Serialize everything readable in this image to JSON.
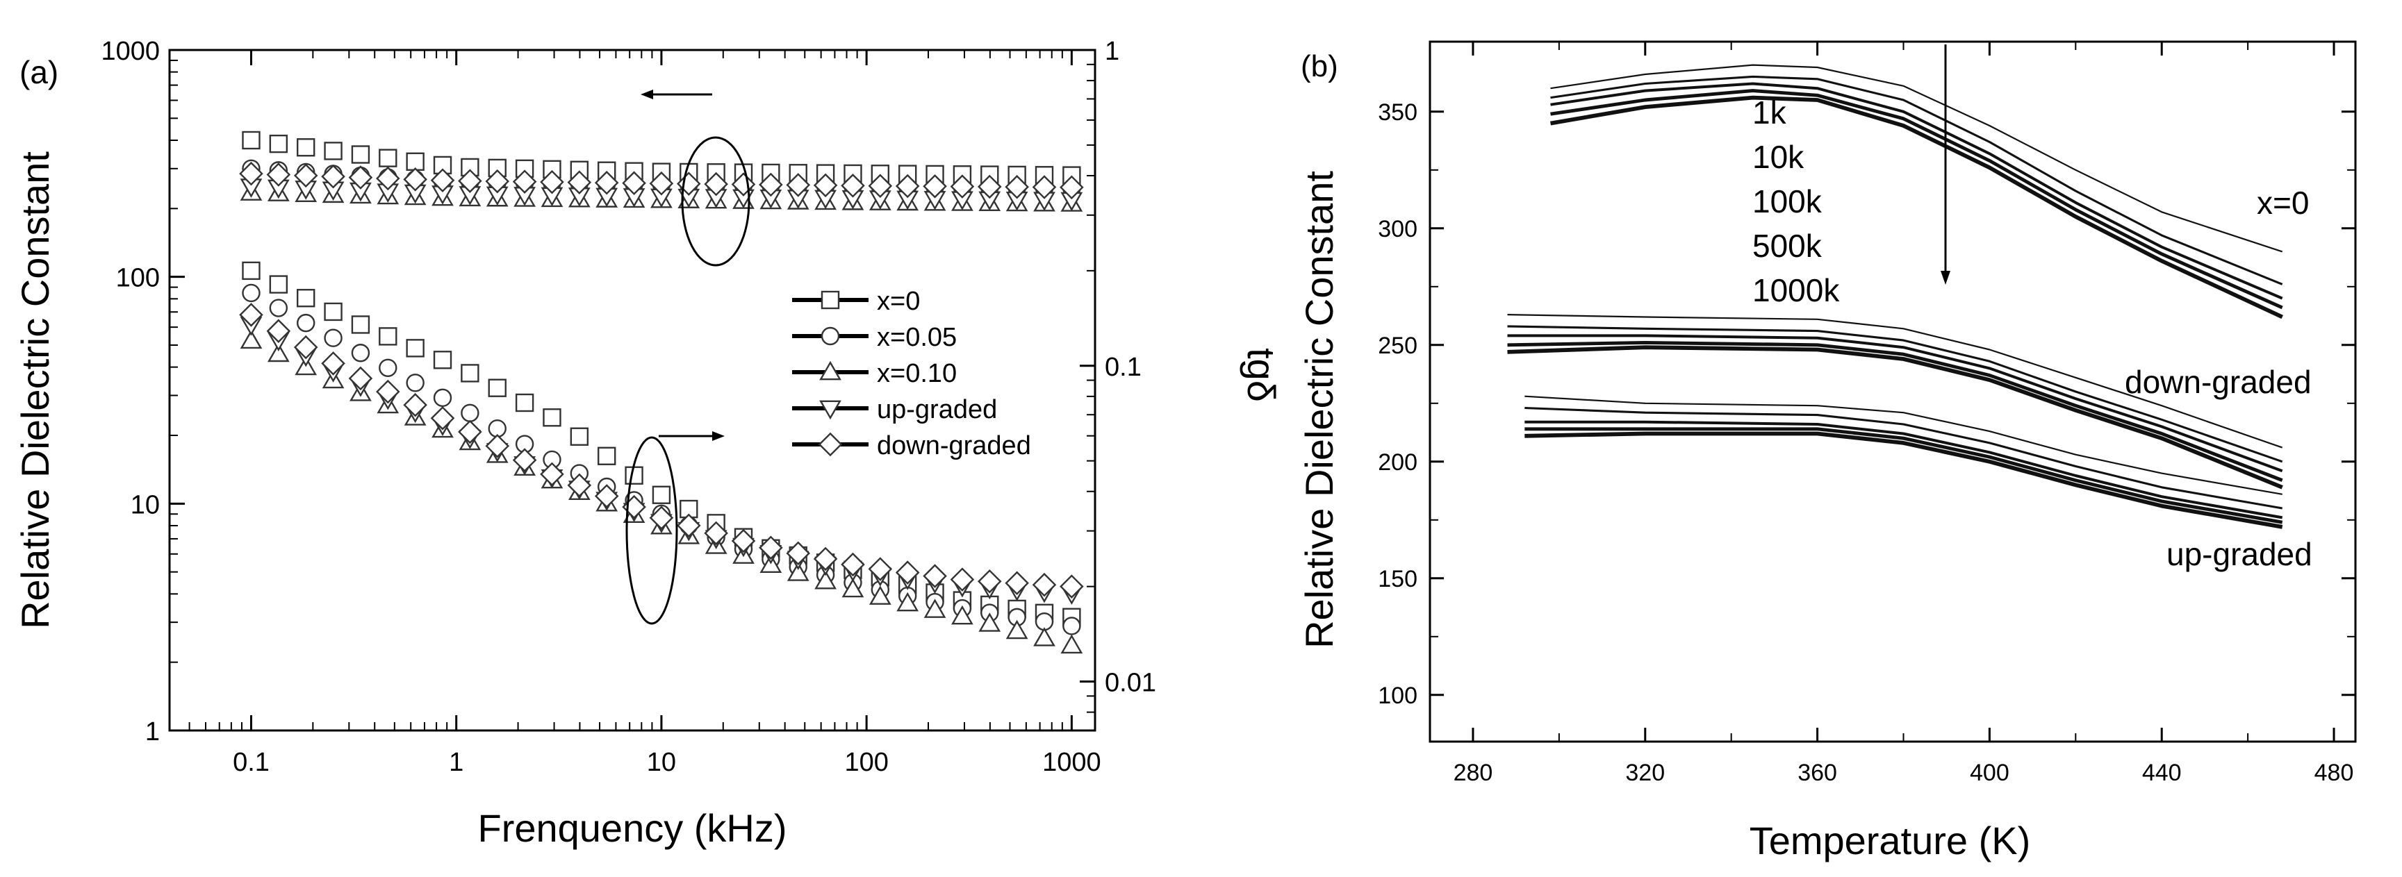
{
  "chart_data": [
    {
      "type": "scatter",
      "panel_label": "(a)",
      "xscale": "log",
      "xlabel": "Frenquency (kHz)",
      "ylabel": "Relative Dielectric Constant",
      "y2label": "tgδ",
      "xlim": [
        0.04,
        1300
      ],
      "ylim": [
        1,
        1000
      ],
      "y2lim": [
        0.007,
        1
      ],
      "xticks": [
        "0.1",
        "1",
        "10",
        "100",
        "1000"
      ],
      "xtick_values": [
        0.1,
        1,
        10,
        100,
        1000
      ],
      "yticks": [
        "1",
        "10",
        "100",
        "1000"
      ],
      "ytick_values": [
        1,
        10,
        100,
        1000
      ],
      "y2ticks": [
        "0.01",
        "0.1",
        "1"
      ],
      "y2tick_values": [
        0.01,
        0.1,
        1
      ],
      "legend": [
        "x=0",
        "x=0.05",
        "x=0.10",
        "up-graded",
        "down-graded"
      ],
      "series": [
        {
          "name": "x=0",
          "marker": "square",
          "axis": "y",
          "values": [
            [
              0.1,
              400
            ],
            [
              1,
              305
            ],
            [
              10,
              290
            ],
            [
              100,
              285
            ],
            [
              1000,
              280
            ]
          ]
        },
        {
          "name": "x=0.05",
          "marker": "circle",
          "axis": "y",
          "values": [
            [
              0.1,
              300
            ],
            [
              1,
              262
            ],
            [
              10,
              255
            ],
            [
              100,
              250
            ],
            [
              1000,
              245
            ]
          ]
        },
        {
          "name": "x=0.10",
          "marker": "triangle-up",
          "axis": "y",
          "values": [
            [
              0.1,
              235
            ],
            [
              1,
              222
            ],
            [
              10,
              218
            ],
            [
              100,
              213
            ],
            [
              1000,
              210
            ]
          ]
        },
        {
          "name": "up-graded",
          "marker": "triangle-down",
          "axis": "y",
          "values": [
            [
              0.1,
              250
            ],
            [
              1,
              232
            ],
            [
              10,
              226
            ],
            [
              100,
              222
            ],
            [
              1000,
              218
            ]
          ]
        },
        {
          "name": "down-graded",
          "marker": "diamond",
          "axis": "y",
          "values": [
            [
              0.1,
              285
            ],
            [
              1,
              265
            ],
            [
              10,
              258
            ],
            [
              100,
              252
            ],
            [
              1000,
              248
            ]
          ]
        },
        {
          "name": "x=0",
          "marker": "square",
          "axis": "y2",
          "values": [
            [
              0.1,
              0.2
            ],
            [
              0.3,
              0.14
            ],
            [
              1,
              0.1
            ],
            [
              3,
              0.068
            ],
            [
              10,
              0.039
            ],
            [
              30,
              0.027
            ],
            [
              100,
              0.022
            ],
            [
              300,
              0.018
            ],
            [
              1000,
              0.016
            ]
          ]
        },
        {
          "name": "x=0.05",
          "marker": "circle",
          "axis": "y2",
          "values": [
            [
              0.1,
              0.17
            ],
            [
              0.3,
              0.115
            ],
            [
              1,
              0.075
            ],
            [
              3,
              0.05
            ],
            [
              10,
              0.034
            ],
            [
              30,
              0.025
            ],
            [
              100,
              0.02
            ],
            [
              300,
              0.017
            ],
            [
              1000,
              0.015
            ]
          ]
        },
        {
          "name": "x=0.10",
          "marker": "triangle-up",
          "axis": "y2",
          "values": [
            [
              0.1,
              0.12
            ],
            [
              0.3,
              0.085
            ],
            [
              1,
              0.06
            ],
            [
              3,
              0.043
            ],
            [
              10,
              0.031
            ],
            [
              30,
              0.024
            ],
            [
              100,
              0.019
            ],
            [
              300,
              0.016
            ],
            [
              1000,
              0.013
            ]
          ]
        },
        {
          "name": "up-graded",
          "marker": "triangle-down",
          "axis": "y2",
          "values": [
            [
              0.1,
              0.135
            ],
            [
              0.3,
              0.09
            ],
            [
              1,
              0.062
            ],
            [
              3,
              0.044
            ],
            [
              10,
              0.032
            ],
            [
              30,
              0.026
            ],
            [
              100,
              0.022
            ],
            [
              300,
              0.02
            ],
            [
              1000,
              0.019
            ]
          ]
        },
        {
          "name": "down-graded",
          "marker": "diamond",
          "axis": "y2",
          "values": [
            [
              0.1,
              0.145
            ],
            [
              0.3,
              0.095
            ],
            [
              1,
              0.065
            ],
            [
              3,
              0.045
            ],
            [
              10,
              0.033
            ],
            [
              30,
              0.027
            ],
            [
              100,
              0.023
            ],
            [
              300,
              0.021
            ],
            [
              1000,
              0.02
            ]
          ]
        }
      ]
    },
    {
      "type": "line",
      "panel_label": "(b)",
      "xlabel": "Temperature (K)",
      "ylabel": "Relative Dielectric Constant",
      "xlim": [
        270,
        485
      ],
      "ylim": [
        80,
        380
      ],
      "xticks": [
        "280",
        "320",
        "360",
        "400",
        "440",
        "480"
      ],
      "xtick_values": [
        280,
        320,
        360,
        400,
        440,
        480
      ],
      "yticks": [
        "100",
        "150",
        "200",
        "250",
        "300",
        "350"
      ],
      "ytick_values": [
        100,
        150,
        200,
        250,
        300,
        350
      ],
      "frequency_labels": [
        "1k",
        "10k",
        "100k",
        "500k",
        "1000k"
      ],
      "group_labels": {
        "x0": "x=0",
        "down": "down-graded",
        "up": "up-graded"
      },
      "series": [
        {
          "name": "x=0 1k",
          "group": "x0",
          "x": [
            298,
            320,
            345,
            360,
            380,
            400,
            420,
            440,
            468
          ],
          "values": [
            360,
            366,
            370,
            369,
            361,
            344,
            325,
            307,
            290
          ]
        },
        {
          "name": "x=0 10k",
          "group": "x0",
          "x": [
            298,
            320,
            345,
            360,
            380,
            400,
            420,
            440,
            468
          ],
          "values": [
            356,
            362,
            365,
            364,
            355,
            337,
            316,
            297,
            276
          ]
        },
        {
          "name": "x=0 100k",
          "group": "x0",
          "x": [
            298,
            320,
            345,
            360,
            380,
            400,
            420,
            440,
            468
          ],
          "values": [
            353,
            359,
            362,
            360,
            350,
            332,
            311,
            292,
            270
          ]
        },
        {
          "name": "x=0 500k",
          "group": "x0",
          "x": [
            298,
            320,
            345,
            360,
            380,
            400,
            420,
            440,
            468
          ],
          "values": [
            349,
            355,
            359,
            357,
            347,
            329,
            308,
            289,
            266
          ]
        },
        {
          "name": "x=0 1000k",
          "group": "x0",
          "x": [
            298,
            320,
            345,
            360,
            380,
            400,
            420,
            440,
            468
          ],
          "values": [
            345,
            352,
            356,
            355,
            344,
            326,
            305,
            286,
            262
          ]
        },
        {
          "name": "down-graded 1k",
          "group": "down",
          "x": [
            288,
            320,
            360,
            380,
            400,
            420,
            440,
            468
          ],
          "values": [
            263,
            262,
            261,
            257,
            248,
            236,
            224,
            206
          ]
        },
        {
          "name": "down-graded 10k",
          "group": "down",
          "x": [
            288,
            320,
            360,
            380,
            400,
            420,
            440,
            468
          ],
          "values": [
            258,
            257,
            256,
            252,
            243,
            230,
            218,
            200
          ]
        },
        {
          "name": "down-graded 100k",
          "group": "down",
          "x": [
            288,
            320,
            360,
            380,
            400,
            420,
            440,
            468
          ],
          "values": [
            254,
            254,
            253,
            249,
            240,
            227,
            215,
            196
          ]
        },
        {
          "name": "down-graded 500k",
          "group": "down",
          "x": [
            288,
            320,
            360,
            380,
            400,
            420,
            440,
            468
          ],
          "values": [
            250,
            251,
            250,
            246,
            237,
            224,
            212,
            192
          ]
        },
        {
          "name": "down-graded 1000k",
          "group": "down",
          "x": [
            288,
            320,
            360,
            380,
            400,
            420,
            440,
            468
          ],
          "values": [
            247,
            249,
            248,
            244,
            235,
            222,
            210,
            189
          ]
        },
        {
          "name": "up-graded 1k",
          "group": "up",
          "x": [
            292,
            320,
            360,
            380,
            400,
            420,
            440,
            468
          ],
          "values": [
            228,
            225,
            224,
            221,
            213,
            203,
            195,
            186
          ]
        },
        {
          "name": "up-graded 10k",
          "group": "up",
          "x": [
            292,
            320,
            360,
            380,
            400,
            420,
            440,
            468
          ],
          "values": [
            223,
            221,
            220,
            216,
            208,
            198,
            189,
            180
          ]
        },
        {
          "name": "up-graded 100k",
          "group": "up",
          "x": [
            292,
            320,
            360,
            380,
            400,
            420,
            440,
            468
          ],
          "values": [
            217,
            217,
            216,
            212,
            204,
            194,
            185,
            176
          ]
        },
        {
          "name": "up-graded 500k",
          "group": "up",
          "x": [
            292,
            320,
            360,
            380,
            400,
            420,
            440,
            468
          ],
          "values": [
            214,
            214,
            214,
            210,
            202,
            192,
            183,
            174
          ]
        },
        {
          "name": "up-graded 1000k",
          "group": "up",
          "x": [
            292,
            320,
            360,
            380,
            400,
            420,
            440,
            468
          ],
          "values": [
            211,
            212,
            212,
            208,
            200,
            190,
            181,
            172
          ]
        }
      ]
    }
  ]
}
